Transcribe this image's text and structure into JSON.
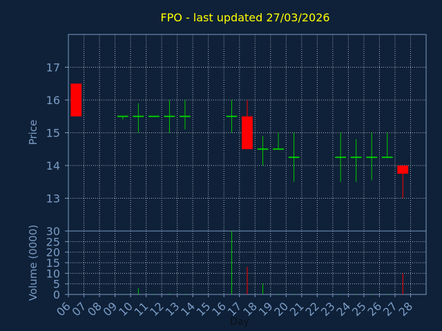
{
  "chart_data": {
    "type": "candlestick",
    "title": "FPO - last updated 27/03/2026",
    "xlabel": "Day",
    "x_ticks": [
      "06",
      "07",
      "08",
      "09",
      "10",
      "11",
      "12",
      "13",
      "14",
      "15",
      "16",
      "17",
      "18",
      "19",
      "20",
      "21",
      "22",
      "23",
      "24",
      "25",
      "26",
      "27",
      "28"
    ],
    "price_panel": {
      "ylabel": "Price",
      "ylim": [
        12.0,
        18.0
      ],
      "y_ticks": [
        "13",
        "14",
        "15",
        "16",
        "17"
      ],
      "grid": true
    },
    "volume_panel": {
      "ylabel": "Volume (0000)",
      "ylim": [
        0,
        30
      ],
      "y_ticks": [
        "0",
        "5",
        "10",
        "15",
        "20",
        "25",
        "30"
      ],
      "grid": true
    },
    "candles": [
      {
        "day": "06",
        "open": 16.5,
        "close": 15.5,
        "high": 16.5,
        "low": 15.5,
        "volume": 0
      },
      {
        "day": "09",
        "open": 15.5,
        "close": 15.5,
        "high": 15.5,
        "low": 15.4,
        "volume": 0.3
      },
      {
        "day": "10",
        "open": 15.5,
        "close": 15.5,
        "high": 15.9,
        "low": 15.0,
        "volume": 3
      },
      {
        "day": "11",
        "open": 15.5,
        "close": 15.5,
        "high": 15.5,
        "low": 15.5,
        "volume": 0.3
      },
      {
        "day": "12",
        "open": 15.5,
        "close": 15.5,
        "high": 16.0,
        "low": 15.0,
        "volume": 0.5
      },
      {
        "day": "13",
        "open": 15.5,
        "close": 15.5,
        "high": 16.0,
        "low": 15.1,
        "volume": 0.3
      },
      {
        "day": "16",
        "open": 15.5,
        "close": 15.5,
        "high": 16.0,
        "low": 15.0,
        "volume": 30
      },
      {
        "day": "17",
        "open": 15.5,
        "close": 14.5,
        "high": 16.0,
        "low": 14.5,
        "volume": 13
      },
      {
        "day": "18",
        "open": 14.5,
        "close": 14.5,
        "high": 14.9,
        "low": 14.0,
        "volume": 5
      },
      {
        "day": "19",
        "open": 14.5,
        "close": 14.5,
        "high": 15.0,
        "low": 14.5,
        "volume": 0.3
      },
      {
        "day": "20",
        "open": 14.25,
        "close": 14.25,
        "high": 15.0,
        "low": 13.5,
        "volume": 0.3
      },
      {
        "day": "23",
        "open": 14.25,
        "close": 14.25,
        "high": 15.0,
        "low": 13.5,
        "volume": 0.3
      },
      {
        "day": "24",
        "open": 14.25,
        "close": 14.25,
        "high": 14.8,
        "low": 13.5,
        "volume": 0.3
      },
      {
        "day": "25",
        "open": 14.25,
        "close": 14.25,
        "high": 15.0,
        "low": 13.55,
        "volume": 0.3
      },
      {
        "day": "26",
        "open": 14.25,
        "close": 14.25,
        "high": 15.0,
        "low": 14.25,
        "volume": 0.3
      },
      {
        "day": "27",
        "open": 14.0,
        "close": 13.75,
        "high": 14.0,
        "low": 13.0,
        "volume": 10
      }
    ],
    "colors": {
      "background": "#0f2138",
      "grid": "#c8d0dc",
      "axis_text": "#7a9cc6",
      "title": "#ffff00",
      "up": "#00c800",
      "down": "#ff0000",
      "frame": "#7a9cc6"
    }
  }
}
